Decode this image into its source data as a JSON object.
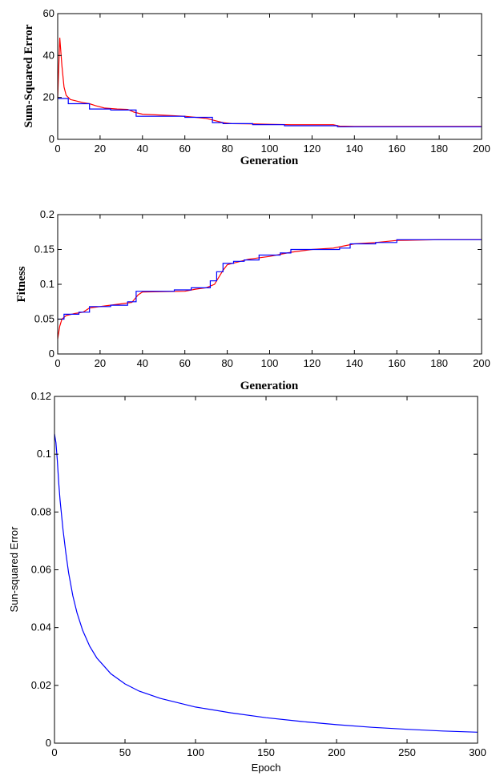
{
  "chart_data": [
    {
      "type": "line",
      "xlabel": "Generation",
      "ylabel": "Sum-Squared Error",
      "xlim": [
        0,
        200
      ],
      "ylim": [
        0,
        60
      ],
      "xticks": [
        0,
        20,
        40,
        60,
        80,
        100,
        120,
        140,
        160,
        180,
        200
      ],
      "yticks": [
        0,
        20,
        40,
        60
      ],
      "grid": false,
      "series": [
        {
          "color": "#ff0000",
          "style": "smooth",
          "x": [
            0,
            1,
            2,
            3,
            4,
            6,
            8,
            12,
            15,
            18,
            22,
            28,
            33,
            36,
            40,
            50,
            60,
            62,
            65,
            70,
            74,
            78,
            82,
            90,
            100,
            110,
            120,
            130,
            133,
            140,
            160,
            180,
            200
          ],
          "y": [
            20,
            48.5,
            35,
            25,
            21,
            19,
            18.5,
            17.5,
            17,
            16,
            15,
            14.5,
            14.3,
            13,
            12,
            11.5,
            11,
            10.8,
            10.5,
            10,
            9,
            8,
            7.5,
            7.4,
            7.2,
            7,
            7,
            7,
            6.3,
            6.2,
            6.2,
            6.2,
            6.2
          ]
        },
        {
          "color": "#0000ff",
          "style": "step",
          "x": [
            0,
            5,
            15,
            25,
            37,
            60,
            73,
            78,
            92,
            107,
            132,
            200
          ],
          "y": [
            19.5,
            17,
            14.5,
            14,
            11,
            10.5,
            8,
            7.5,
            7,
            6.5,
            6,
            6
          ]
        }
      ]
    },
    {
      "type": "line",
      "xlabel": "Generation",
      "ylabel": "Fitness",
      "xlim": [
        0,
        200
      ],
      "ylim": [
        0,
        0.2
      ],
      "xticks": [
        0,
        20,
        40,
        60,
        80,
        100,
        120,
        140,
        160,
        180,
        200
      ],
      "yticks": [
        0,
        0.05,
        0.1,
        0.15,
        0.2
      ],
      "grid": false,
      "series": [
        {
          "color": "#ff0000",
          "style": "smooth",
          "x": [
            0,
            1,
            2,
            4,
            8,
            12,
            15,
            20,
            30,
            35,
            38,
            40,
            60,
            65,
            70,
            74,
            76,
            78,
            80,
            85,
            90,
            100,
            110,
            120,
            130,
            135,
            140,
            150,
            160,
            180,
            200
          ],
          "y": [
            0.022,
            0.04,
            0.05,
            0.055,
            0.058,
            0.06,
            0.066,
            0.068,
            0.072,
            0.074,
            0.085,
            0.089,
            0.09,
            0.093,
            0.095,
            0.1,
            0.11,
            0.12,
            0.128,
            0.132,
            0.136,
            0.14,
            0.146,
            0.15,
            0.152,
            0.155,
            0.158,
            0.16,
            0.163,
            0.164,
            0.164
          ]
        },
        {
          "color": "#0000ff",
          "style": "step",
          "x": [
            0,
            3,
            10,
            15,
            25,
            33,
            37,
            55,
            63,
            72,
            75,
            78,
            83,
            88,
            95,
            105,
            110,
            133,
            138,
            150,
            160,
            200
          ],
          "y": [
            0.05,
            0.057,
            0.06,
            0.068,
            0.07,
            0.075,
            0.09,
            0.092,
            0.095,
            0.105,
            0.118,
            0.13,
            0.133,
            0.135,
            0.142,
            0.145,
            0.15,
            0.152,
            0.158,
            0.16,
            0.164,
            0.164
          ]
        }
      ]
    },
    {
      "type": "line",
      "xlabel": "Epoch",
      "ylabel": "Sun-squared Error",
      "xlim": [
        0,
        300
      ],
      "ylim": [
        0,
        0.12
      ],
      "xticks": [
        0,
        50,
        100,
        150,
        200,
        250,
        300
      ],
      "yticks": [
        0,
        0.02,
        0.04,
        0.06,
        0.08,
        0.1,
        0.12
      ],
      "grid": false,
      "series": [
        {
          "color": "#0000ff",
          "style": "smooth",
          "x": [
            0,
            1,
            2,
            3,
            4,
            6,
            8,
            10,
            13,
            16,
            20,
            25,
            30,
            40,
            50,
            60,
            75,
            100,
            125,
            150,
            175,
            200,
            225,
            250,
            275,
            300
          ],
          "y": [
            0.107,
            0.104,
            0.098,
            0.09,
            0.084,
            0.074,
            0.066,
            0.059,
            0.051,
            0.045,
            0.039,
            0.0335,
            0.0295,
            0.024,
            0.0205,
            0.018,
            0.0155,
            0.0125,
            0.0105,
            0.0088,
            0.0075,
            0.0064,
            0.0055,
            0.0048,
            0.0042,
            0.0038
          ]
        }
      ]
    }
  ]
}
